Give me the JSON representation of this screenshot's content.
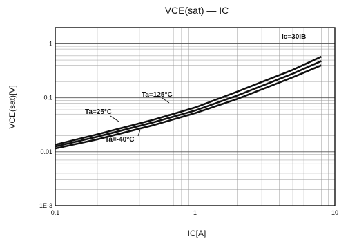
{
  "chart_data": {
    "type": "line",
    "title": "VCE(sat) — IC",
    "xlabel": "IC[A]",
    "ylabel": "VCE(sat)[V]",
    "xscale": "log",
    "yscale": "log",
    "xlim": [
      0.1,
      10
    ],
    "ylim": [
      0.001,
      2
    ],
    "x_ticks": [
      0.1,
      1,
      10
    ],
    "x_tick_labels": [
      "0.1",
      "1",
      "10"
    ],
    "y_ticks": [
      0.001,
      0.01,
      0.1,
      1
    ],
    "y_tick_labels": [
      "1E-3",
      "0.01",
      "0.1",
      "1"
    ],
    "grid": true,
    "condition_label": "Ic=30IB",
    "series": [
      {
        "name": "Ta=125°C",
        "x": [
          0.1,
          0.2,
          0.5,
          1,
          2,
          5,
          8
        ],
        "y": [
          0.0135,
          0.021,
          0.039,
          0.066,
          0.13,
          0.33,
          0.58
        ]
      },
      {
        "name": "Ta=25°C",
        "x": [
          0.1,
          0.2,
          0.5,
          1,
          2,
          5,
          8
        ],
        "y": [
          0.0125,
          0.019,
          0.035,
          0.058,
          0.11,
          0.28,
          0.48
        ]
      },
      {
        "name": "Ta=-40°C",
        "x": [
          0.1,
          0.2,
          0.5,
          1,
          2,
          5,
          8
        ],
        "y": [
          0.0115,
          0.017,
          0.031,
          0.052,
          0.095,
          0.24,
          0.4
        ]
      }
    ]
  }
}
